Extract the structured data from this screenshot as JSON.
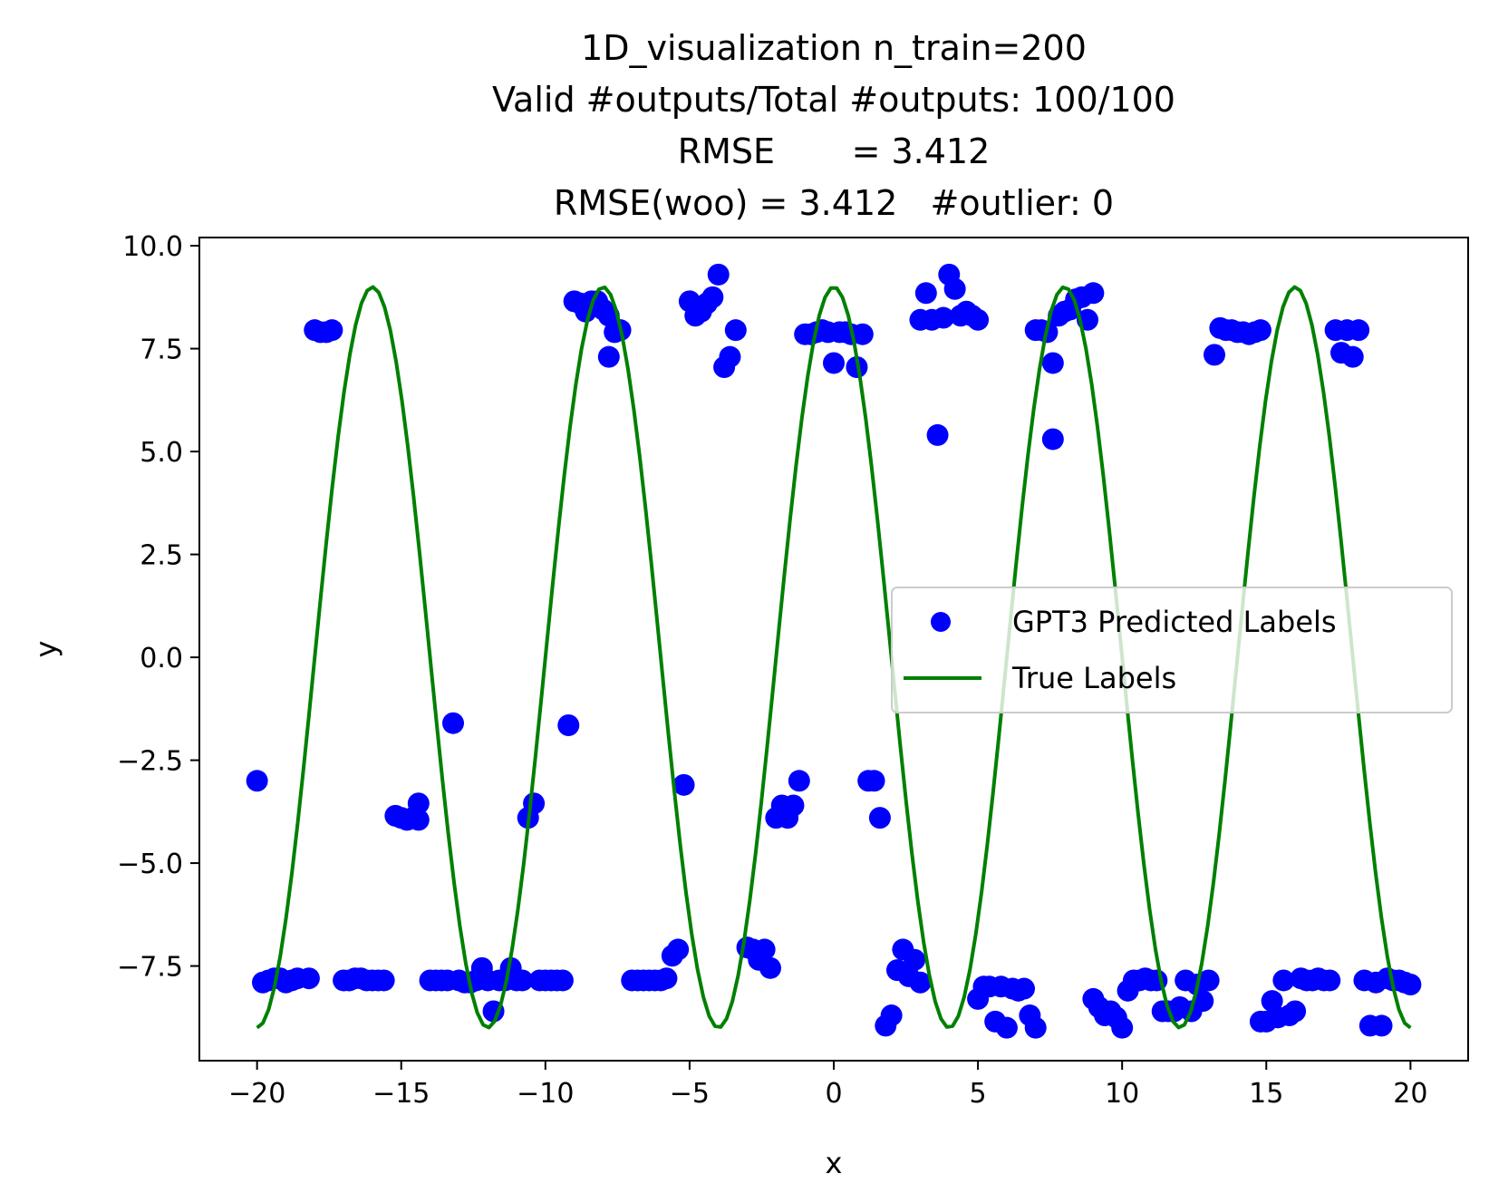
{
  "chart_data": {
    "type": "scatter",
    "title_lines": [
      "1D_visualization  n_train=200",
      "Valid #outputs/Total #outputs: 100/100",
      "RMSE       = 3.412",
      "RMSE(woo) = 3.412   #outlier: 0"
    ],
    "xlabel": "x",
    "ylabel": "y",
    "xlim": [
      -22,
      22
    ],
    "ylim": [
      -9.8,
      10.2
    ],
    "xticks": [
      -20,
      -15,
      -10,
      -5,
      0,
      5,
      10,
      15,
      20
    ],
    "xtick_labels": [
      "−20",
      "−15",
      "−10",
      "−5",
      "0",
      "5",
      "10",
      "15",
      "20"
    ],
    "yticks": [
      10.0,
      7.5,
      5.0,
      2.5,
      0.0,
      -2.5,
      -5.0,
      -7.5
    ],
    "ytick_labels": [
      "10.0",
      "7.5",
      "5.0",
      "2.5",
      "0.0",
      "−2.5",
      "−5.0",
      "−7.5"
    ],
    "grid": false,
    "legend": {
      "placement": "center-right",
      "entries": [
        {
          "label": "GPT3 Predicted Labels",
          "marker": "dot",
          "color": "#0000ff"
        },
        {
          "label": "True Labels",
          "marker": "line",
          "color": "#008000"
        }
      ]
    },
    "series": [
      {
        "name": "GPT3 Predicted Labels",
        "kind": "scatter",
        "color": "#0000ff",
        "points": [
          [
            -20.0,
            -3.0
          ],
          [
            -19.8,
            -7.9
          ],
          [
            -19.6,
            -7.85
          ],
          [
            -19.4,
            -7.8
          ],
          [
            -19.2,
            -7.8
          ],
          [
            -19.0,
            -7.9
          ],
          [
            -18.8,
            -7.85
          ],
          [
            -18.6,
            -7.8
          ],
          [
            -18.2,
            -7.8
          ],
          [
            -18.0,
            7.95
          ],
          [
            -17.8,
            7.9
          ],
          [
            -17.6,
            7.9
          ],
          [
            -17.4,
            7.95
          ],
          [
            -17.0,
            -7.85
          ],
          [
            -16.8,
            -7.85
          ],
          [
            -16.6,
            -7.8
          ],
          [
            -16.4,
            -7.8
          ],
          [
            -16.2,
            -7.85
          ],
          [
            -16.0,
            -7.85
          ],
          [
            -15.8,
            -7.85
          ],
          [
            -15.6,
            -7.85
          ],
          [
            -15.2,
            -3.85
          ],
          [
            -15.0,
            -3.9
          ],
          [
            -14.8,
            -3.95
          ],
          [
            -14.6,
            -3.9
          ],
          [
            -14.4,
            -3.55
          ],
          [
            -14.4,
            -3.95
          ],
          [
            -14.0,
            -7.85
          ],
          [
            -13.8,
            -7.85
          ],
          [
            -13.6,
            -7.85
          ],
          [
            -13.4,
            -7.85
          ],
          [
            -13.2,
            -1.6
          ],
          [
            -13.0,
            -7.85
          ],
          [
            -12.8,
            -7.9
          ],
          [
            -12.6,
            -7.9
          ],
          [
            -12.4,
            -7.85
          ],
          [
            -12.2,
            -7.55
          ],
          [
            -12.0,
            -7.85
          ],
          [
            -11.8,
            -8.6
          ],
          [
            -11.6,
            -7.85
          ],
          [
            -11.4,
            -7.85
          ],
          [
            -11.2,
            -7.55
          ],
          [
            -11.0,
            -7.85
          ],
          [
            -10.8,
            -7.85
          ],
          [
            -10.6,
            -3.9
          ],
          [
            -10.4,
            -3.55
          ],
          [
            -10.2,
            -7.85
          ],
          [
            -10.0,
            -7.85
          ],
          [
            -9.8,
            -7.85
          ],
          [
            -9.6,
            -7.85
          ],
          [
            -9.4,
            -7.85
          ],
          [
            -9.2,
            -1.65
          ],
          [
            -9.0,
            8.65
          ],
          [
            -8.8,
            8.6
          ],
          [
            -8.6,
            8.4
          ],
          [
            -8.4,
            8.65
          ],
          [
            -8.2,
            8.65
          ],
          [
            -8.0,
            8.45
          ],
          [
            -7.8,
            8.3
          ],
          [
            -7.8,
            7.3
          ],
          [
            -7.6,
            7.9
          ],
          [
            -7.4,
            7.95
          ],
          [
            -7.0,
            -7.85
          ],
          [
            -6.8,
            -7.85
          ],
          [
            -6.6,
            -7.85
          ],
          [
            -6.4,
            -7.85
          ],
          [
            -6.2,
            -7.85
          ],
          [
            -6.0,
            -7.85
          ],
          [
            -5.8,
            -7.8
          ],
          [
            -5.6,
            -7.25
          ],
          [
            -5.4,
            -7.1
          ],
          [
            -5.2,
            -3.1
          ],
          [
            -5.0,
            8.65
          ],
          [
            -4.8,
            8.3
          ],
          [
            -4.6,
            8.4
          ],
          [
            -4.4,
            8.6
          ],
          [
            -4.2,
            8.75
          ],
          [
            -4.0,
            9.3
          ],
          [
            -3.8,
            7.05
          ],
          [
            -3.6,
            7.3
          ],
          [
            -3.4,
            7.95
          ],
          [
            -3.0,
            -7.05
          ],
          [
            -2.8,
            -7.1
          ],
          [
            -2.6,
            -7.35
          ],
          [
            -2.4,
            -7.1
          ],
          [
            -2.2,
            -7.55
          ],
          [
            -2.0,
            -3.9
          ],
          [
            -1.8,
            -3.6
          ],
          [
            -1.6,
            -3.9
          ],
          [
            -1.4,
            -3.6
          ],
          [
            -1.2,
            -3.0
          ],
          [
            -1.0,
            7.85
          ],
          [
            -0.8,
            7.85
          ],
          [
            -0.6,
            7.9
          ],
          [
            -0.4,
            7.95
          ],
          [
            -0.2,
            7.9
          ],
          [
            0.0,
            7.15
          ],
          [
            0.2,
            7.9
          ],
          [
            0.4,
            7.9
          ],
          [
            0.6,
            7.85
          ],
          [
            0.8,
            7.05
          ],
          [
            1.0,
            7.85
          ],
          [
            1.2,
            -3.0
          ],
          [
            1.4,
            -3.0
          ],
          [
            1.6,
            -3.9
          ],
          [
            1.8,
            -8.95
          ],
          [
            2.0,
            -8.7
          ],
          [
            2.2,
            -7.6
          ],
          [
            2.4,
            -7.1
          ],
          [
            2.6,
            -7.75
          ],
          [
            2.8,
            -7.35
          ],
          [
            3.0,
            -7.9
          ],
          [
            3.0,
            8.2
          ],
          [
            3.2,
            8.85
          ],
          [
            3.4,
            8.2
          ],
          [
            3.6,
            5.4
          ],
          [
            3.8,
            8.25
          ],
          [
            4.0,
            9.3
          ],
          [
            4.2,
            8.95
          ],
          [
            4.4,
            8.3
          ],
          [
            4.6,
            8.4
          ],
          [
            4.8,
            8.3
          ],
          [
            5.0,
            8.2
          ],
          [
            5.0,
            -8.3
          ],
          [
            5.2,
            -8.0
          ],
          [
            5.4,
            -8.0
          ],
          [
            5.6,
            -8.85
          ],
          [
            5.8,
            -8.0
          ],
          [
            6.0,
            -9.0
          ],
          [
            6.2,
            -8.05
          ],
          [
            6.4,
            -8.1
          ],
          [
            6.6,
            -8.05
          ],
          [
            6.8,
            -8.7
          ],
          [
            7.0,
            -9.0
          ],
          [
            7.0,
            7.95
          ],
          [
            7.2,
            7.95
          ],
          [
            7.4,
            7.9
          ],
          [
            7.6,
            5.3
          ],
          [
            7.6,
            7.15
          ],
          [
            7.8,
            8.3
          ],
          [
            8.0,
            8.4
          ],
          [
            8.2,
            8.45
          ],
          [
            8.4,
            8.7
          ],
          [
            8.6,
            8.75
          ],
          [
            8.8,
            8.2
          ],
          [
            9.0,
            8.85
          ],
          [
            9.0,
            -8.3
          ],
          [
            9.2,
            -8.5
          ],
          [
            9.4,
            -8.7
          ],
          [
            9.6,
            -8.6
          ],
          [
            9.8,
            -8.75
          ],
          [
            10.0,
            -9.0
          ],
          [
            10.2,
            -8.1
          ],
          [
            10.4,
            -7.85
          ],
          [
            10.6,
            -7.85
          ],
          [
            10.8,
            -7.8
          ],
          [
            11.0,
            -7.85
          ],
          [
            11.2,
            -7.85
          ],
          [
            11.4,
            -8.6
          ],
          [
            11.6,
            -8.6
          ],
          [
            11.8,
            -8.6
          ],
          [
            12.0,
            -8.5
          ],
          [
            12.2,
            -7.85
          ],
          [
            12.4,
            -8.6
          ],
          [
            12.6,
            -7.95
          ],
          [
            12.8,
            -8.35
          ],
          [
            13.0,
            -7.85
          ],
          [
            13.2,
            7.35
          ],
          [
            13.4,
            8.0
          ],
          [
            13.6,
            7.95
          ],
          [
            13.8,
            7.95
          ],
          [
            14.0,
            7.9
          ],
          [
            14.2,
            7.9
          ],
          [
            14.4,
            7.85
          ],
          [
            14.6,
            7.9
          ],
          [
            14.8,
            7.95
          ],
          [
            14.8,
            -8.85
          ],
          [
            15.0,
            -8.85
          ],
          [
            15.2,
            -8.35
          ],
          [
            15.4,
            -8.75
          ],
          [
            15.6,
            -7.85
          ],
          [
            15.8,
            -8.7
          ],
          [
            16.0,
            -8.6
          ],
          [
            16.2,
            -7.8
          ],
          [
            16.4,
            -7.85
          ],
          [
            16.6,
            -7.85
          ],
          [
            16.8,
            -7.8
          ],
          [
            17.0,
            -7.85
          ],
          [
            17.2,
            -7.85
          ],
          [
            17.4,
            7.95
          ],
          [
            17.6,
            7.4
          ],
          [
            17.8,
            7.95
          ],
          [
            18.0,
            7.3
          ],
          [
            18.2,
            7.95
          ],
          [
            18.4,
            -7.85
          ],
          [
            18.6,
            -8.95
          ],
          [
            18.8,
            -7.9
          ],
          [
            19.0,
            -8.95
          ],
          [
            19.2,
            -7.8
          ],
          [
            19.4,
            -7.85
          ],
          [
            19.6,
            -7.85
          ],
          [
            19.8,
            -7.9
          ],
          [
            20.0,
            -7.95
          ]
        ]
      },
      {
        "name": "True Labels",
        "kind": "line",
        "color": "#008000",
        "function": "9*cos(pi*x/4)",
        "x_range": [
          -20,
          20
        ],
        "n_points": 200
      }
    ]
  }
}
